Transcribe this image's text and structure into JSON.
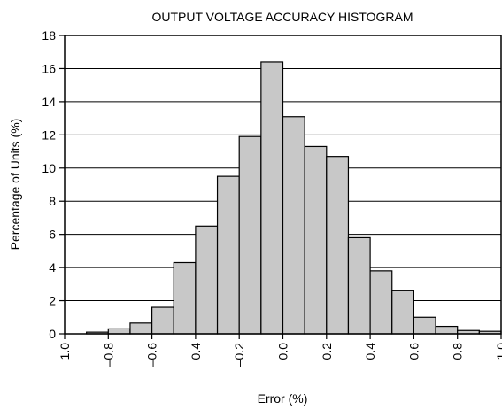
{
  "chart_data": {
    "type": "bar",
    "title": "OUTPUT VOLTAGE ACCURACY HISTOGRAM",
    "xlabel": "Error (%)",
    "ylabel": "Percentage of Units (%)",
    "xlim": [
      -1.0,
      1.0
    ],
    "ylim": [
      0,
      18
    ],
    "bin_width": 0.1,
    "grid": "horizontal",
    "x_ticks": [
      "–1.0",
      "–0.8",
      "–0.6",
      "–0.4",
      "–0.2",
      "0.0",
      "0.2",
      "0.4",
      "0.6",
      "0.8",
      "1.0"
    ],
    "y_ticks": [
      "0",
      "2",
      "4",
      "6",
      "8",
      "10",
      "12",
      "14",
      "16",
      "18"
    ],
    "bins": [
      {
        "x0": -0.9,
        "x1": -0.8,
        "value": 0.1
      },
      {
        "x0": -0.8,
        "x1": -0.7,
        "value": 0.3
      },
      {
        "x0": -0.7,
        "x1": -0.6,
        "value": 0.65
      },
      {
        "x0": -0.6,
        "x1": -0.5,
        "value": 1.6
      },
      {
        "x0": -0.5,
        "x1": -0.4,
        "value": 4.3
      },
      {
        "x0": -0.4,
        "x1": -0.3,
        "value": 6.5
      },
      {
        "x0": -0.3,
        "x1": -0.2,
        "value": 9.5
      },
      {
        "x0": -0.2,
        "x1": -0.1,
        "value": 11.9
      },
      {
        "x0": -0.1,
        "x1": 0.0,
        "value": 16.4
      },
      {
        "x0": 0.0,
        "x1": 0.1,
        "value": 13.1
      },
      {
        "x0": 0.1,
        "x1": 0.2,
        "value": 11.3
      },
      {
        "x0": 0.2,
        "x1": 0.3,
        "value": 10.7
      },
      {
        "x0": 0.3,
        "x1": 0.4,
        "value": 5.8
      },
      {
        "x0": 0.4,
        "x1": 0.5,
        "value": 3.8
      },
      {
        "x0": 0.5,
        "x1": 0.6,
        "value": 2.6
      },
      {
        "x0": 0.6,
        "x1": 0.7,
        "value": 1.0
      },
      {
        "x0": 0.7,
        "x1": 0.8,
        "value": 0.45
      },
      {
        "x0": 0.8,
        "x1": 0.9,
        "value": 0.2
      },
      {
        "x0": 0.9,
        "x1": 1.0,
        "value": 0.15
      }
    ]
  }
}
